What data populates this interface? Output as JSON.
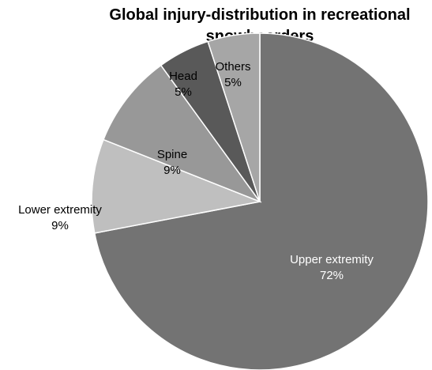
{
  "chart_data": {
    "type": "pie",
    "title": "Global injury-distribution in recreational snowboarders",
    "title_lines": [
      "Global injury-distribution in recreational",
      "snowboarders"
    ],
    "legend": "none",
    "slices": [
      {
        "category": "Upper extremity",
        "value": 72,
        "label": "72%",
        "color": "#737373",
        "text_color": "#ffffff"
      },
      {
        "category": "Lower extremity",
        "value": 9,
        "label": "9%",
        "color": "#bfbfbf",
        "text_color": "#000000"
      },
      {
        "category": "Spine",
        "value": 9,
        "label": "9%",
        "color": "#989898",
        "text_color": "#000000"
      },
      {
        "category": "Head",
        "value": 5,
        "label": "5%",
        "color": "#595959",
        "text_color": "#000000"
      },
      {
        "category": "Others",
        "value": 5,
        "label": "5%",
        "color": "#a6a6a6",
        "text_color": "#000000"
      }
    ]
  }
}
